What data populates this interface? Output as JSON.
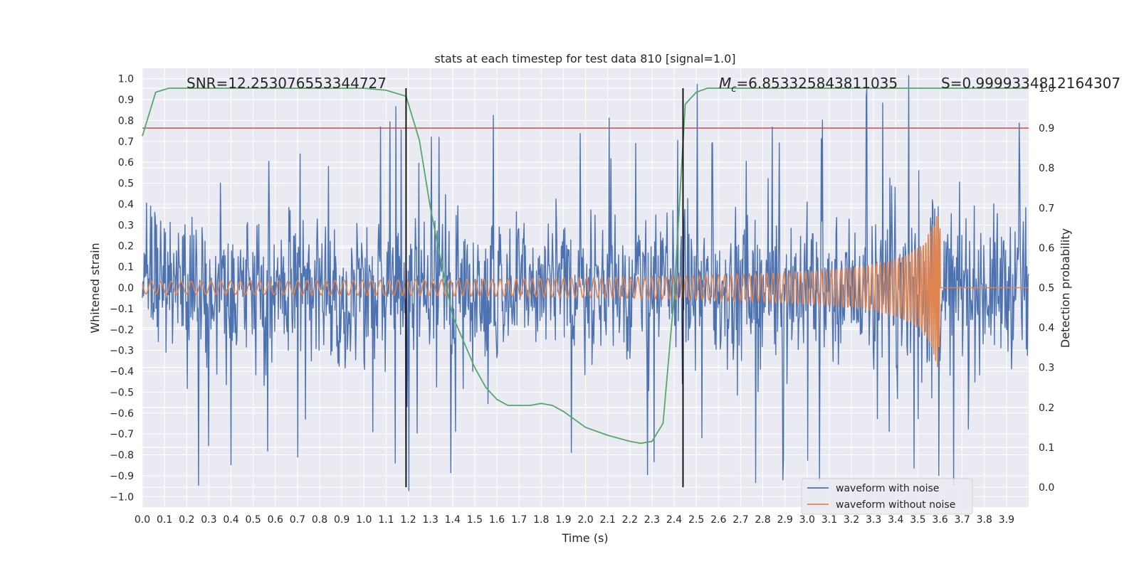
{
  "chart_data": {
    "type": "line",
    "title": "stats at each timestep for test data 810 [signal=1.0]",
    "xlabel": "Time (s)",
    "ylabel_left": "Whitened strain",
    "ylabel_right": "Detection probability",
    "xlim": [
      0.0,
      4.0
    ],
    "ylim_left": [
      -1.05,
      1.05
    ],
    "ylim_right": [
      -0.05,
      1.05
    ],
    "x_ticks": [
      "0.0",
      "0.1",
      "0.2",
      "0.3",
      "0.4",
      "0.5",
      "0.6",
      "0.7",
      "0.8",
      "0.9",
      "1.0",
      "1.1",
      "1.2",
      "1.3",
      "1.4",
      "1.5",
      "1.6",
      "1.7",
      "1.8",
      "1.9",
      "2.0",
      "2.1",
      "2.2",
      "2.3",
      "2.4",
      "2.5",
      "2.6",
      "2.7",
      "2.8",
      "2.9",
      "3.0",
      "3.1",
      "3.2",
      "3.3",
      "3.4",
      "3.5",
      "3.6",
      "3.7",
      "3.8",
      "3.9"
    ],
    "y_ticks_left": [
      "1.0",
      "0.9",
      "0.8",
      "0.7",
      "0.6",
      "0.5",
      "0.4",
      "0.3",
      "0.2",
      "0.1",
      "0.0",
      "−0.1",
      "−0.2",
      "−0.3",
      "−0.4",
      "−0.5",
      "−0.6",
      "−0.7",
      "−0.8",
      "−0.9",
      "−1.0"
    ],
    "y_ticks_right": [
      "1.0",
      "0.9",
      "0.8",
      "0.7",
      "0.6",
      "0.5",
      "0.4",
      "0.3",
      "0.2",
      "0.1",
      "0.0"
    ],
    "series": [
      {
        "name": "waveform with noise",
        "color": "#4c72b0",
        "axis": "left",
        "description": "noisy whitened strain, amplitude roughly ±0.5 with spikes up to ±1.0",
        "noise_amplitude": 0.3,
        "spike_max": 1.0
      },
      {
        "name": "waveform without noise",
        "color": "#dd8452",
        "axis": "left",
        "description": "chirp waveform, amplitude grows from ~0.03 to ~0.38 and cuts off near 3.6 s",
        "start_amplitude": 0.03,
        "peak_amplitude": 0.38,
        "merger_time": 3.6
      },
      {
        "name": "detection probability",
        "color": "#55a868",
        "axis": "right",
        "x": [
          0.0,
          0.06,
          0.12,
          0.2,
          0.5,
          1.0,
          1.1,
          1.19,
          1.25,
          1.3,
          1.35,
          1.4,
          1.5,
          1.55,
          1.6,
          1.65,
          1.7,
          1.75,
          1.8,
          1.85,
          1.9,
          2.0,
          2.1,
          2.2,
          2.25,
          2.3,
          2.35,
          2.4,
          2.45,
          2.5,
          2.55,
          3.0,
          4.0
        ],
        "y": [
          0.88,
          0.99,
          1.0,
          1.0,
          1.0,
          1.0,
          0.995,
          0.98,
          0.87,
          0.7,
          0.56,
          0.43,
          0.3,
          0.25,
          0.22,
          0.205,
          0.205,
          0.205,
          0.21,
          0.205,
          0.19,
          0.15,
          0.13,
          0.115,
          0.11,
          0.115,
          0.16,
          0.48,
          0.96,
          0.99,
          1.0,
          1.0,
          1.0
        ]
      }
    ],
    "threshold": {
      "value": 0.9,
      "axis": "right",
      "color": "#c44e52"
    },
    "vertical_lines": [
      1.19,
      2.44
    ],
    "annotations": {
      "snr": "SNR=12.253076553344727",
      "mc_symbol": "M",
      "mc_sub": "c",
      "mc_value": "=6.853325843811035",
      "s_label": "S=0.9999334812164307"
    },
    "legend": {
      "position": "lower-right",
      "entries": [
        "waveform with noise",
        "waveform without noise"
      ]
    },
    "colors": {
      "plot_bg": "#eaeaf2",
      "grid": "#ffffff",
      "noise": "#4c72b0",
      "clean": "#dd8452",
      "prob": "#55a868",
      "threshold": "#c44e52",
      "vline": "#000000"
    }
  }
}
